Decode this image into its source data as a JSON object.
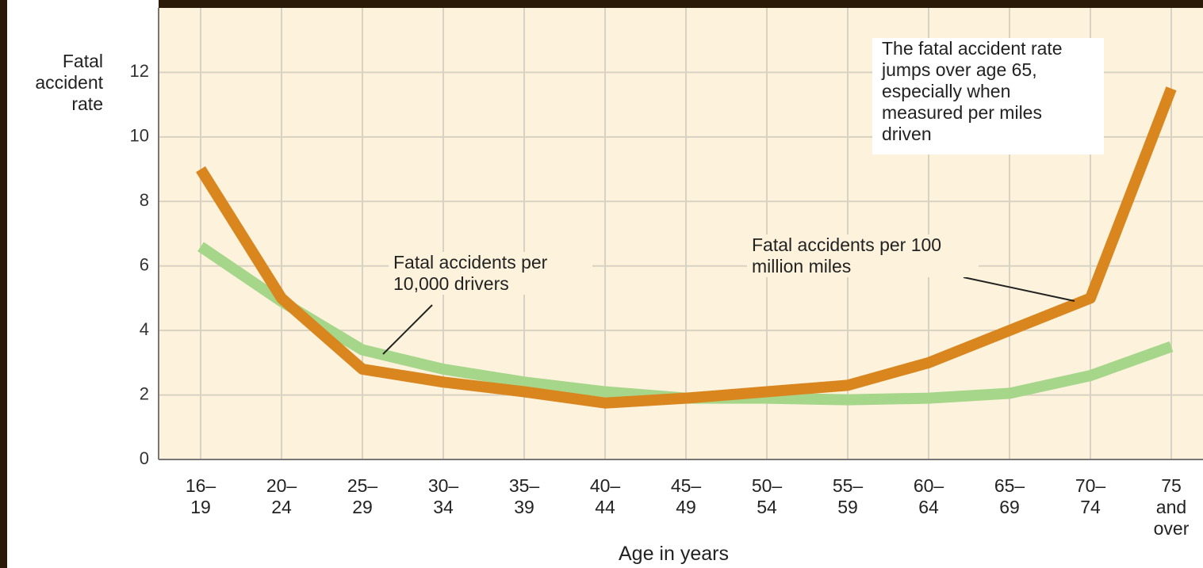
{
  "chart_data": {
    "type": "line",
    "y_label": "Fatal accident rate",
    "x_label": "Age in years",
    "annotation": "The fatal accident rate jumps over age 65, especially when measured per miles driven",
    "categories": [
      "16–19",
      "20–24",
      "25–29",
      "30–34",
      "35–39",
      "40–44",
      "45–49",
      "50–54",
      "55–59",
      "60–64",
      "65–69",
      "70–74",
      "75 and over"
    ],
    "series": [
      {
        "name": "Fatal accidents per 100 million miles",
        "color": "#d9861f",
        "values": [
          9,
          5,
          2.8,
          2.4,
          2.1,
          1.75,
          1.9,
          2.1,
          2.3,
          3.0,
          4.0,
          5.0,
          11.5
        ]
      },
      {
        "name": "Fatal accidents per 10,000 drivers",
        "color": "#a6d68a",
        "values": [
          6.6,
          4.9,
          3.4,
          2.8,
          2.4,
          2.1,
          1.9,
          1.9,
          1.85,
          1.9,
          2.05,
          2.6,
          3.5
        ]
      }
    ],
    "ylim": [
      0,
      14
    ],
    "yticks": [
      0,
      2,
      4,
      6,
      8,
      10,
      12
    ],
    "grid": true
  }
}
